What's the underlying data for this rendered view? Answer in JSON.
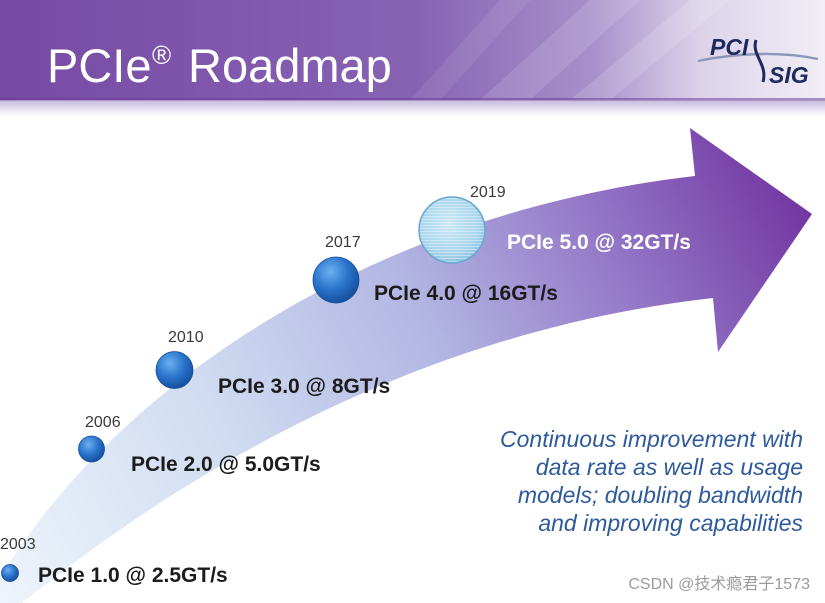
{
  "header": {
    "title_main": "PCIe",
    "title_mark": "®",
    "title_rest": "Roadmap"
  },
  "logo": {
    "top": "PCI",
    "bottom": "SIG"
  },
  "milestones": [
    {
      "year": "2003",
      "label": "PCIe 1.0 @ 2.5GT/s"
    },
    {
      "year": "2006",
      "label": "PCIe 2.0 @ 5.0GT/s"
    },
    {
      "year": "2010",
      "label": "PCIe 3.0 @ 8GT/s"
    },
    {
      "year": "2017",
      "label": "PCIe 4.0 @ 16GT/s"
    },
    {
      "year": "2019",
      "label": "PCIe 5.0 @ 32GT/s"
    }
  ],
  "callout": {
    "lines": [
      "Continuous improvement with",
      "data rate as well as usage",
      "models; doubling bandwidth",
      "and improving capabilities"
    ]
  },
  "watermark": "CSDN @技术瘾君子1573",
  "colors": {
    "header_purple": "#774aa4",
    "arrow_start": "#eef4fb",
    "arrow_end": "#6f2f9e",
    "milestone_blue": "#2a74cc",
    "milestone_current": "#a7d4ec",
    "callout_text": "#2d5a9c"
  }
}
